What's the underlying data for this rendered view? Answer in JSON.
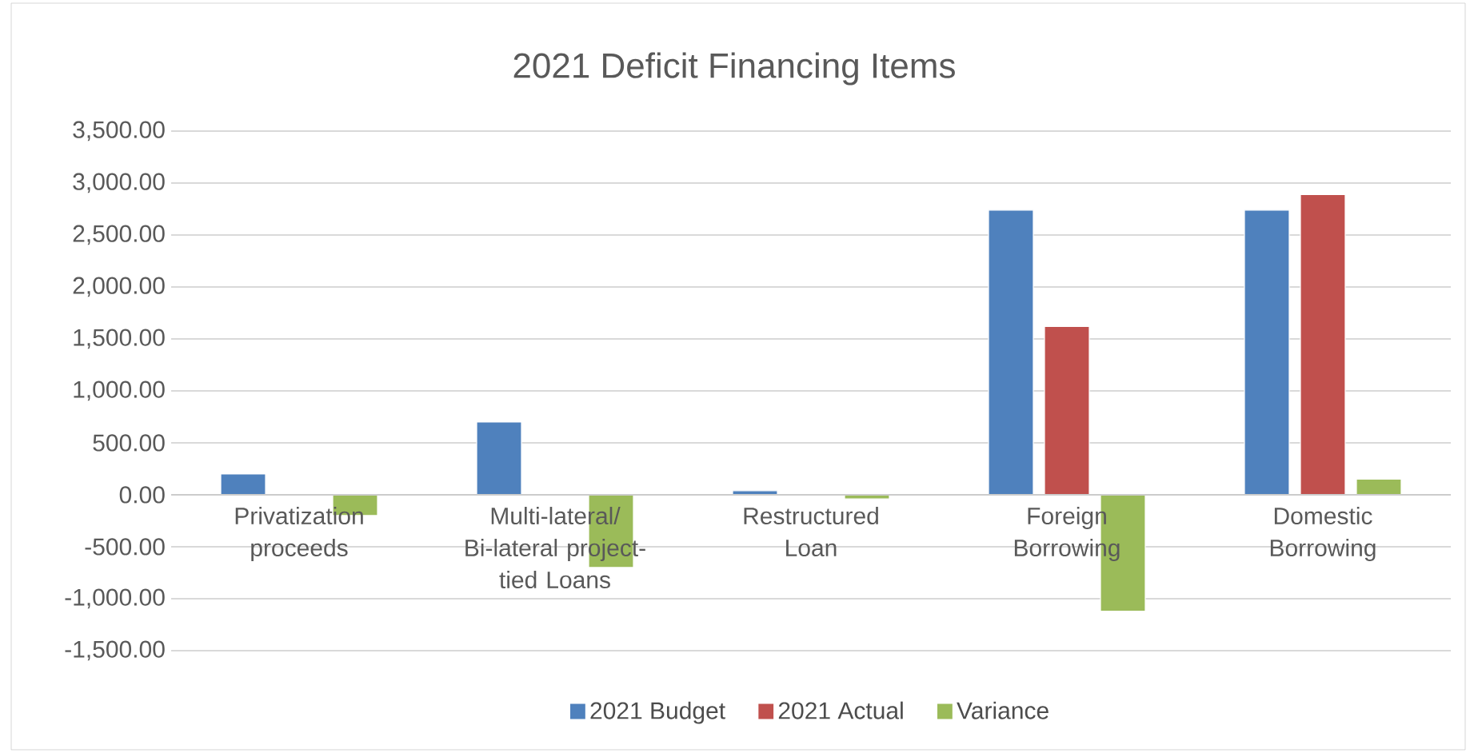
{
  "chart_data": {
    "type": "bar",
    "title": "2021 Deficit Financing Items",
    "categories": [
      "Privatization proceeds",
      "Multi-lateral/ Bi-lateral project-tied Loans",
      "Restructured Loan",
      "Foreign Borrowing",
      "Domestic Borrowing"
    ],
    "series": [
      {
        "name": "2021 Budget",
        "color": "#4f81bd",
        "values": [
          200,
          700,
          40,
          2740,
          2740
        ]
      },
      {
        "name": "2021 Actual",
        "color": "#c0504d",
        "values": [
          null,
          null,
          null,
          1620,
          2890
        ]
      },
      {
        "name": "Variance",
        "color": "#9bbb59",
        "values": [
          -200,
          -700,
          -40,
          -1120,
          150
        ]
      }
    ],
    "ylim": [
      -1500,
      3500
    ],
    "yticks": [
      {
        "value": -1500,
        "label": "-1,500.00"
      },
      {
        "value": -1000,
        "label": "-1,000.00"
      },
      {
        "value": -500,
        "label": "-500.00"
      },
      {
        "value": 0,
        "label": "0.00"
      },
      {
        "value": 500,
        "label": "500.00"
      },
      {
        "value": 1000,
        "label": "1,000.00"
      },
      {
        "value": 1500,
        "label": "1,500.00"
      },
      {
        "value": 2000,
        "label": "2,000.00"
      },
      {
        "value": 2500,
        "label": "2,500.00"
      },
      {
        "value": 3000,
        "label": "3,000.00"
      },
      {
        "value": 3500,
        "label": "3,500.00"
      }
    ],
    "grid": "y",
    "legend": "bottom"
  }
}
